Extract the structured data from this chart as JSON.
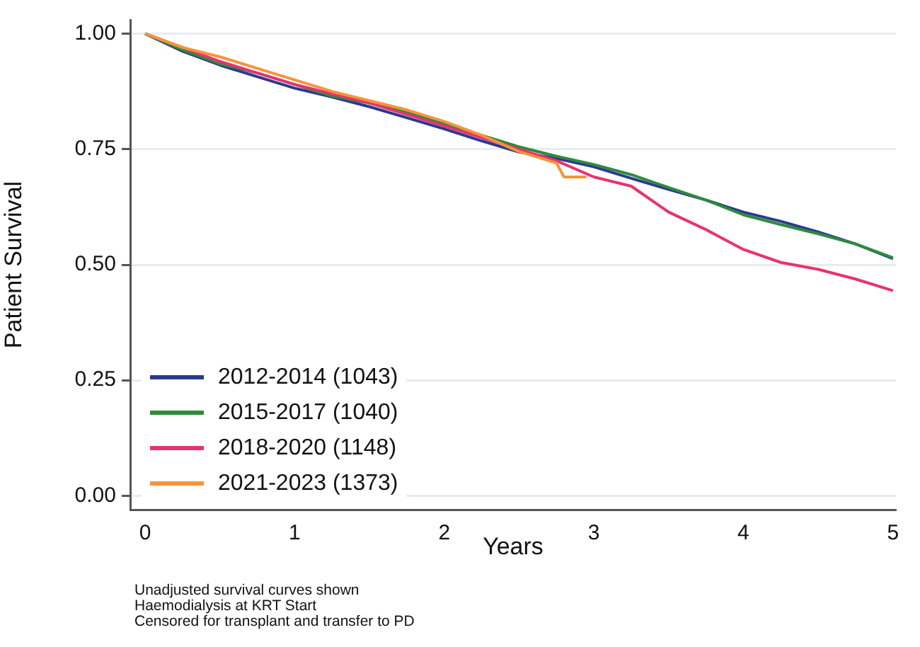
{
  "chart_data": {
    "type": "line",
    "xlabel": "Years",
    "ylabel": "Patient Survival",
    "xlim": [
      -0.1,
      5.02
    ],
    "xticks": [
      0,
      1,
      2,
      3,
      4,
      5
    ],
    "ylim": [
      -0.03,
      1.03
    ],
    "yticks": [
      {
        "value": 0,
        "label": "0.00"
      },
      {
        "value": 0.25,
        "label": "0.25"
      },
      {
        "value": 0.5,
        "label": "0.50"
      },
      {
        "value": 0.75,
        "label": "0.75"
      },
      {
        "value": 1,
        "label": "1.00"
      }
    ],
    "grid": "y",
    "legend": "bottom left",
    "marker": "none",
    "line_style": "solid",
    "annotations": [
      "Unadjusted survival curves shown",
      "Haemodialysis at KRT Start",
      "Censored for transplant and transfer to PD"
    ],
    "series": [
      {
        "name": "2012-2014 (1043)",
        "color": "#2b3990",
        "x": [
          0,
          0.25,
          0.5,
          0.75,
          1,
          1.25,
          1.5,
          1.75,
          2,
          2.25,
          2.5,
          2.75,
          3,
          3.25,
          3.5,
          3.75,
          4,
          4.25,
          4.5,
          4.75,
          5
        ],
        "values": [
          1,
          0.962,
          0.932,
          0.907,
          0.882,
          0.863,
          0.842,
          0.818,
          0.794,
          0.768,
          0.744,
          0.73,
          0.712,
          0.687,
          0.663,
          0.64,
          0.614,
          0.594,
          0.571,
          0.545,
          0.513
        ]
      },
      {
        "name": "2015-2017 (1040)",
        "color": "#2e8b3a",
        "x": [
          0,
          0.25,
          0.5,
          0.75,
          1,
          1.25,
          1.5,
          1.75,
          2,
          2.25,
          2.5,
          2.75,
          3,
          3.25,
          3.5,
          3.75,
          4,
          4.25,
          4.5,
          4.75,
          5
        ],
        "values": [
          1,
          0.965,
          0.935,
          0.915,
          0.89,
          0.865,
          0.85,
          0.83,
          0.805,
          0.78,
          0.755,
          0.735,
          0.717,
          0.695,
          0.667,
          0.64,
          0.608,
          0.587,
          0.567,
          0.545,
          0.515
        ]
      },
      {
        "name": "2018-2020 (1148)",
        "color": "#e8336f",
        "x": [
          0,
          0.25,
          0.5,
          0.75,
          1,
          1.25,
          1.5,
          1.75,
          2,
          2.25,
          2.5,
          2.75,
          3,
          3.25,
          3.5,
          3.75,
          4,
          4.25,
          4.5,
          4.75,
          5
        ],
        "values": [
          1,
          0.97,
          0.94,
          0.915,
          0.89,
          0.87,
          0.85,
          0.825,
          0.8,
          0.775,
          0.75,
          0.725,
          0.69,
          0.67,
          0.614,
          0.576,
          0.533,
          0.505,
          0.49,
          0.469,
          0.444
        ]
      },
      {
        "name": "2021-2023 (1373)",
        "color": "#f7943a",
        "x": [
          0,
          0.25,
          0.5,
          0.75,
          1,
          1.25,
          1.5,
          1.75,
          2,
          2.25,
          2.5,
          2.75,
          2.8,
          2.95
        ],
        "values": [
          1,
          0.97,
          0.95,
          0.925,
          0.9,
          0.875,
          0.855,
          0.835,
          0.81,
          0.78,
          0.745,
          0.72,
          0.69,
          0.69
        ]
      }
    ]
  }
}
